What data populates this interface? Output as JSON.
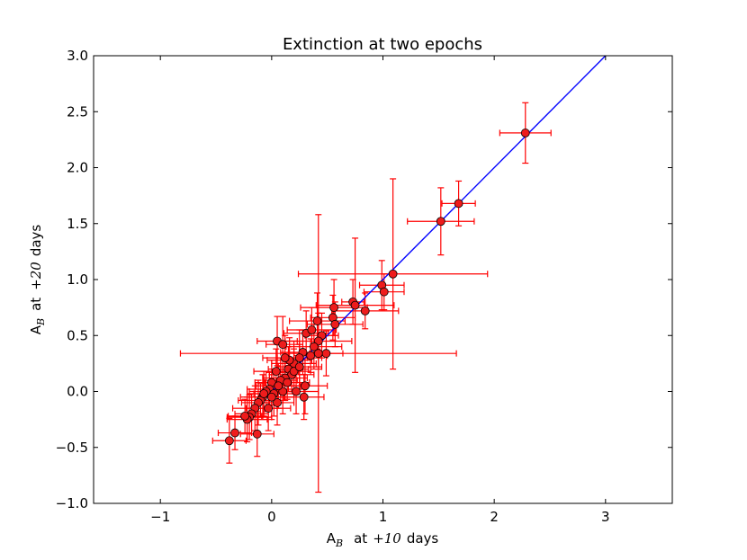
{
  "chart_data": {
    "type": "scatter",
    "title": "Extinction at two epochs",
    "xlabel": {
      "main": "A",
      "sub": "B",
      "rest": "at",
      "math": "+10",
      "unit": "days"
    },
    "ylabel": {
      "main": "A",
      "sub": "B",
      "rest": "at",
      "math": "+20",
      "unit": "days"
    },
    "xlim": [
      -1.6,
      3.6
    ],
    "ylim": [
      -1.0,
      3.0
    ],
    "xticks": [
      -1,
      0,
      1,
      2,
      3
    ],
    "yticks": [
      -1.0,
      -0.5,
      0.0,
      0.5,
      1.0,
      1.5,
      2.0,
      2.5,
      3.0
    ],
    "xtick_labels": [
      "−1",
      "0",
      "1",
      "2",
      "3"
    ],
    "ytick_labels": [
      "−1.0",
      "−0.5",
      "0.0",
      "0.5",
      "1.0",
      "1.5",
      "2.0",
      "2.5",
      "3.0"
    ],
    "grid": false,
    "marker_color": "#ee1c1c",
    "error_color": "#ff0000",
    "line_color": "#0000ff",
    "reference_line": {
      "x": [
        0.0,
        3.0
      ],
      "y": [
        0.0,
        3.0
      ]
    },
    "series": [
      {
        "points": [
          [
            2.28,
            2.31,
            0.23,
            0.27
          ],
          [
            1.68,
            1.68,
            0.15,
            0.2
          ],
          [
            1.52,
            1.52,
            0.3,
            0.3
          ],
          [
            1.09,
            1.05,
            0.85,
            0.85
          ],
          [
            0.99,
            0.95,
            0.2,
            0.22
          ],
          [
            1.01,
            0.89,
            0.18,
            0.16
          ],
          [
            0.84,
            0.72,
            0.3,
            0.16
          ],
          [
            0.73,
            0.8,
            0.1,
            0.2
          ],
          [
            0.75,
            0.77,
            0.35,
            0.6
          ],
          [
            0.56,
            0.75,
            0.3,
            0.25
          ],
          [
            0.55,
            0.66,
            0.2,
            0.2
          ],
          [
            0.57,
            0.6,
            0.25,
            0.2
          ],
          [
            0.41,
            0.63,
            0.25,
            0.25
          ],
          [
            0.45,
            0.5,
            0.15,
            0.2
          ],
          [
            0.42,
            0.45,
            0.3,
            0.25
          ],
          [
            0.38,
            0.4,
            0.25,
            0.2
          ],
          [
            0.31,
            0.52,
            0.2,
            0.2
          ],
          [
            0.36,
            0.55,
            0.22,
            0.2
          ],
          [
            0.49,
            0.34,
            0.15,
            0.2
          ],
          [
            0.42,
            0.34,
            1.24,
            1.24
          ],
          [
            0.28,
            0.35,
            0.2,
            0.2
          ],
          [
            0.25,
            0.3,
            0.2,
            0.25
          ],
          [
            0.2,
            0.25,
            0.2,
            0.2
          ],
          [
            0.15,
            0.2,
            0.18,
            0.2
          ],
          [
            0.18,
            0.15,
            0.2,
            0.15
          ],
          [
            0.12,
            0.12,
            0.2,
            0.2
          ],
          [
            0.08,
            0.1,
            0.15,
            0.2
          ],
          [
            0.05,
            0.45,
            0.18,
            0.22
          ],
          [
            0.1,
            0.42,
            0.15,
            0.25
          ],
          [
            0.04,
            0.18,
            0.2,
            0.2
          ],
          [
            0.0,
            0.08,
            0.15,
            0.2
          ],
          [
            -0.02,
            0.02,
            0.2,
            0.15
          ],
          [
            0.02,
            -0.02,
            0.18,
            0.2
          ],
          [
            -0.05,
            0.0,
            0.15,
            0.18
          ],
          [
            -0.08,
            -0.05,
            0.2,
            0.2
          ],
          [
            -0.1,
            -0.08,
            0.2,
            0.15
          ],
          [
            -0.12,
            -0.1,
            0.15,
            0.2
          ],
          [
            -0.15,
            -0.15,
            0.2,
            0.2
          ],
          [
            -0.18,
            -0.2,
            0.15,
            0.18
          ],
          [
            -0.2,
            -0.23,
            0.2,
            0.2
          ],
          [
            -0.22,
            -0.25,
            0.18,
            0.2
          ],
          [
            -0.24,
            -0.22,
            0.15,
            0.15
          ],
          [
            -0.13,
            -0.38,
            0.15,
            0.2
          ],
          [
            -0.33,
            -0.37,
            0.15,
            0.15
          ],
          [
            -0.38,
            -0.44,
            0.15,
            0.2
          ],
          [
            0.29,
            -0.05,
            0.18,
            0.2
          ],
          [
            0.22,
            0.0,
            0.2,
            0.2
          ],
          [
            0.1,
            0.0,
            0.15,
            0.2
          ],
          [
            0.3,
            0.05,
            0.2,
            0.25
          ],
          [
            0.05,
            -0.1,
            0.15,
            0.2
          ],
          [
            -0.03,
            -0.15,
            0.2,
            0.2
          ],
          [
            0.14,
            0.08,
            0.2,
            0.15
          ],
          [
            0.2,
            0.18,
            0.15,
            0.2
          ],
          [
            0.25,
            0.22,
            0.2,
            0.2
          ],
          [
            0.35,
            0.32,
            0.15,
            0.15
          ],
          [
            0.16,
            0.28,
            0.2,
            0.2
          ],
          [
            0.06,
            0.05,
            0.2,
            0.2
          ],
          [
            -0.07,
            -0.02,
            0.15,
            0.2
          ],
          [
            0.12,
            0.3,
            0.2,
            0.2
          ],
          [
            0.0,
            -0.05,
            0.2,
            0.2
          ]
        ]
      }
    ]
  }
}
